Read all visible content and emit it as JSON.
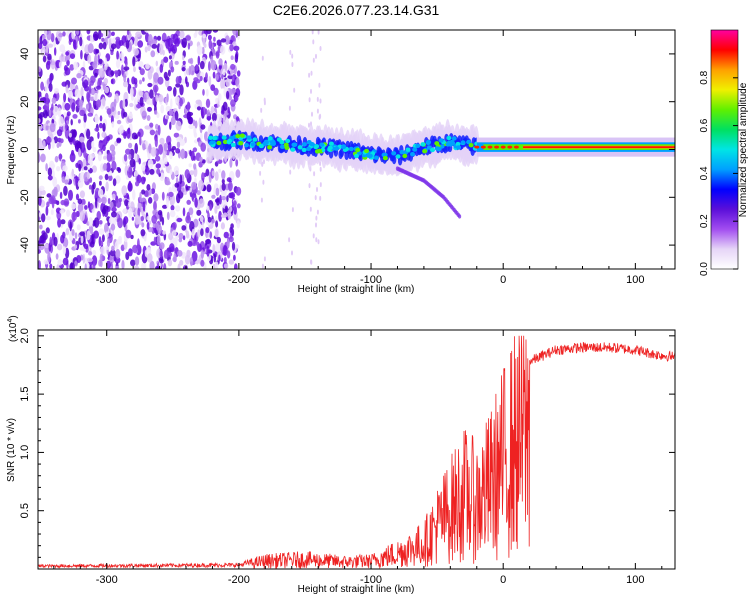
{
  "title": "C2E6.2026.077.23.14.G31",
  "chart_data": [
    {
      "type": "heatmap",
      "name": "spectrogram",
      "xlabel": "Height of straight line (km)",
      "ylabel": "Frequency (Hz)",
      "xlim": [
        -352,
        130
      ],
      "ylim": [
        -50,
        50
      ],
      "xticks": [
        -300,
        -200,
        -100,
        0,
        100
      ],
      "yticks": [
        -40,
        -20,
        0,
        20,
        40
      ],
      "colorbar": {
        "label": "Normalized spectral amplitude",
        "range": [
          0,
          1
        ],
        "ticks": [
          0.0,
          0.2,
          0.4,
          0.6,
          0.8
        ],
        "colors": [
          "#ffffff",
          "#e6d5f7",
          "#a24df0",
          "#5b0fd9",
          "#0000ff",
          "#00a0ff",
          "#00e5e5",
          "#00e060",
          "#60f000",
          "#f0f000",
          "#ffa000",
          "#ff0000",
          "#ff00a0"
        ]
      },
      "regions": {
        "noise_x_range": [
          -352,
          -200
        ],
        "signal_start_x": -222,
        "tone_start_x": -20
      },
      "signal_track": [
        {
          "x": -222,
          "freq": 3
        },
        {
          "x": -200,
          "freq": 4
        },
        {
          "x": -180,
          "freq": 3
        },
        {
          "x": -160,
          "freq": 2
        },
        {
          "x": -140,
          "freq": 1
        },
        {
          "x": -120,
          "freq": 0
        },
        {
          "x": -100,
          "freq": -2
        },
        {
          "x": -80,
          "freq": -3
        },
        {
          "x": -60,
          "freq": 1
        },
        {
          "x": -40,
          "freq": 3
        },
        {
          "x": -20,
          "freq": 1
        },
        {
          "x": 0,
          "freq": 1
        },
        {
          "x": 50,
          "freq": 1
        },
        {
          "x": 100,
          "freq": 1
        },
        {
          "x": 130,
          "freq": 1
        }
      ],
      "sideband_track": [
        {
          "x": -80,
          "freq": -8
        },
        {
          "x": -60,
          "freq": -13
        },
        {
          "x": -45,
          "freq": -20
        },
        {
          "x": -33,
          "freq": -28
        }
      ]
    },
    {
      "type": "line",
      "name": "snr",
      "xlabel": "Height of straight line (km)",
      "ylabel": "SNR (10 * v/v)",
      "yscale_label": "(x10",
      "yscale_exp": "4",
      "xlim": [
        -352,
        130
      ],
      "ylim": [
        0,
        2.05
      ],
      "xticks": [
        -300,
        -200,
        -100,
        0,
        100
      ],
      "yticks": [
        0.5,
        1.0,
        1.5,
        2.0
      ],
      "color": "#ee2222",
      "envelope": [
        {
          "x": -352,
          "y": 0.03
        },
        {
          "x": -200,
          "y": 0.04
        },
        {
          "x": -180,
          "y": 0.1
        },
        {
          "x": -150,
          "y": 0.12
        },
        {
          "x": -120,
          "y": 0.09
        },
        {
          "x": -100,
          "y": 0.1
        },
        {
          "x": -80,
          "y": 0.2
        },
        {
          "x": -60,
          "y": 0.32
        },
        {
          "x": -50,
          "y": 0.55
        },
        {
          "x": -40,
          "y": 0.75
        },
        {
          "x": -30,
          "y": 0.95
        },
        {
          "x": -20,
          "y": 0.85
        },
        {
          "x": -10,
          "y": 1.05
        },
        {
          "x": 0,
          "y": 1.35
        },
        {
          "x": 10,
          "y": 1.62
        },
        {
          "x": 20,
          "y": 1.78
        },
        {
          "x": 40,
          "y": 1.88
        },
        {
          "x": 60,
          "y": 1.9
        },
        {
          "x": 80,
          "y": 1.9
        },
        {
          "x": 100,
          "y": 1.88
        },
        {
          "x": 115,
          "y": 1.84
        },
        {
          "x": 130,
          "y": 1.82
        }
      ]
    }
  ]
}
